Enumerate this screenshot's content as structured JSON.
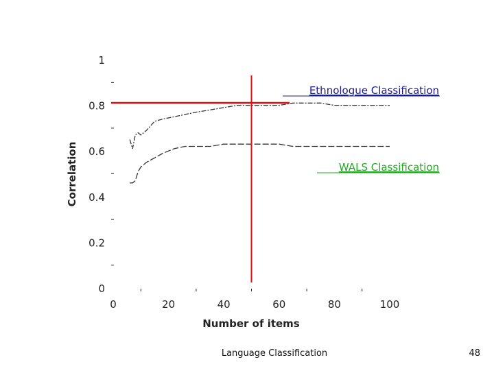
{
  "footer": {
    "title": "Language Classification",
    "page_number": "48"
  },
  "colors": {
    "ethnologue_label": "#1a1a8c",
    "wals_label": "#22aa22",
    "reference_lines": "#dd1111",
    "curves": "#333333",
    "axis": "#222222"
  },
  "chart_data": {
    "type": "line",
    "xlabel": "Number of items",
    "ylabel": "Correlation",
    "xlim": [
      0,
      100
    ],
    "ylim": [
      0,
      1
    ],
    "x_ticks": [
      0,
      20,
      40,
      60,
      80,
      100
    ],
    "y_ticks": [
      0,
      0.2,
      0.4,
      0.6,
      0.8,
      1
    ],
    "y_tick_labels": [
      "0",
      "0.2",
      "0.4",
      "0.6",
      "0.8",
      "1"
    ],
    "grid": false,
    "series": [
      {
        "name": "Ethnologue Classification",
        "color": "#1a1a8c",
        "x": [
          6,
          7,
          8,
          9,
          10,
          12,
          15,
          18,
          22,
          26,
          30,
          35,
          40,
          45,
          50,
          55,
          60,
          65,
          70,
          75,
          80,
          85,
          90,
          95,
          100
        ],
        "y": [
          0.65,
          0.61,
          0.67,
          0.68,
          0.67,
          0.69,
          0.73,
          0.74,
          0.75,
          0.76,
          0.77,
          0.78,
          0.79,
          0.8,
          0.8,
          0.8,
          0.8,
          0.81,
          0.81,
          0.81,
          0.8,
          0.8,
          0.8,
          0.8,
          0.8
        ]
      },
      {
        "name": "WALS Classification",
        "color": "#22aa22",
        "x": [
          6,
          7,
          8,
          9,
          10,
          12,
          15,
          18,
          22,
          26,
          30,
          35,
          40,
          45,
          50,
          55,
          60,
          65,
          70,
          75,
          80,
          85,
          90,
          95,
          100
        ],
        "y": [
          0.46,
          0.46,
          0.47,
          0.51,
          0.53,
          0.55,
          0.57,
          0.59,
          0.61,
          0.62,
          0.62,
          0.62,
          0.63,
          0.63,
          0.63,
          0.63,
          0.63,
          0.62,
          0.62,
          0.62,
          0.62,
          0.62,
          0.62,
          0.62,
          0.62
        ]
      }
    ],
    "reference_lines": {
      "vertical_x": 50,
      "horizontal_y": 0.81,
      "color": "#dd1111"
    }
  }
}
